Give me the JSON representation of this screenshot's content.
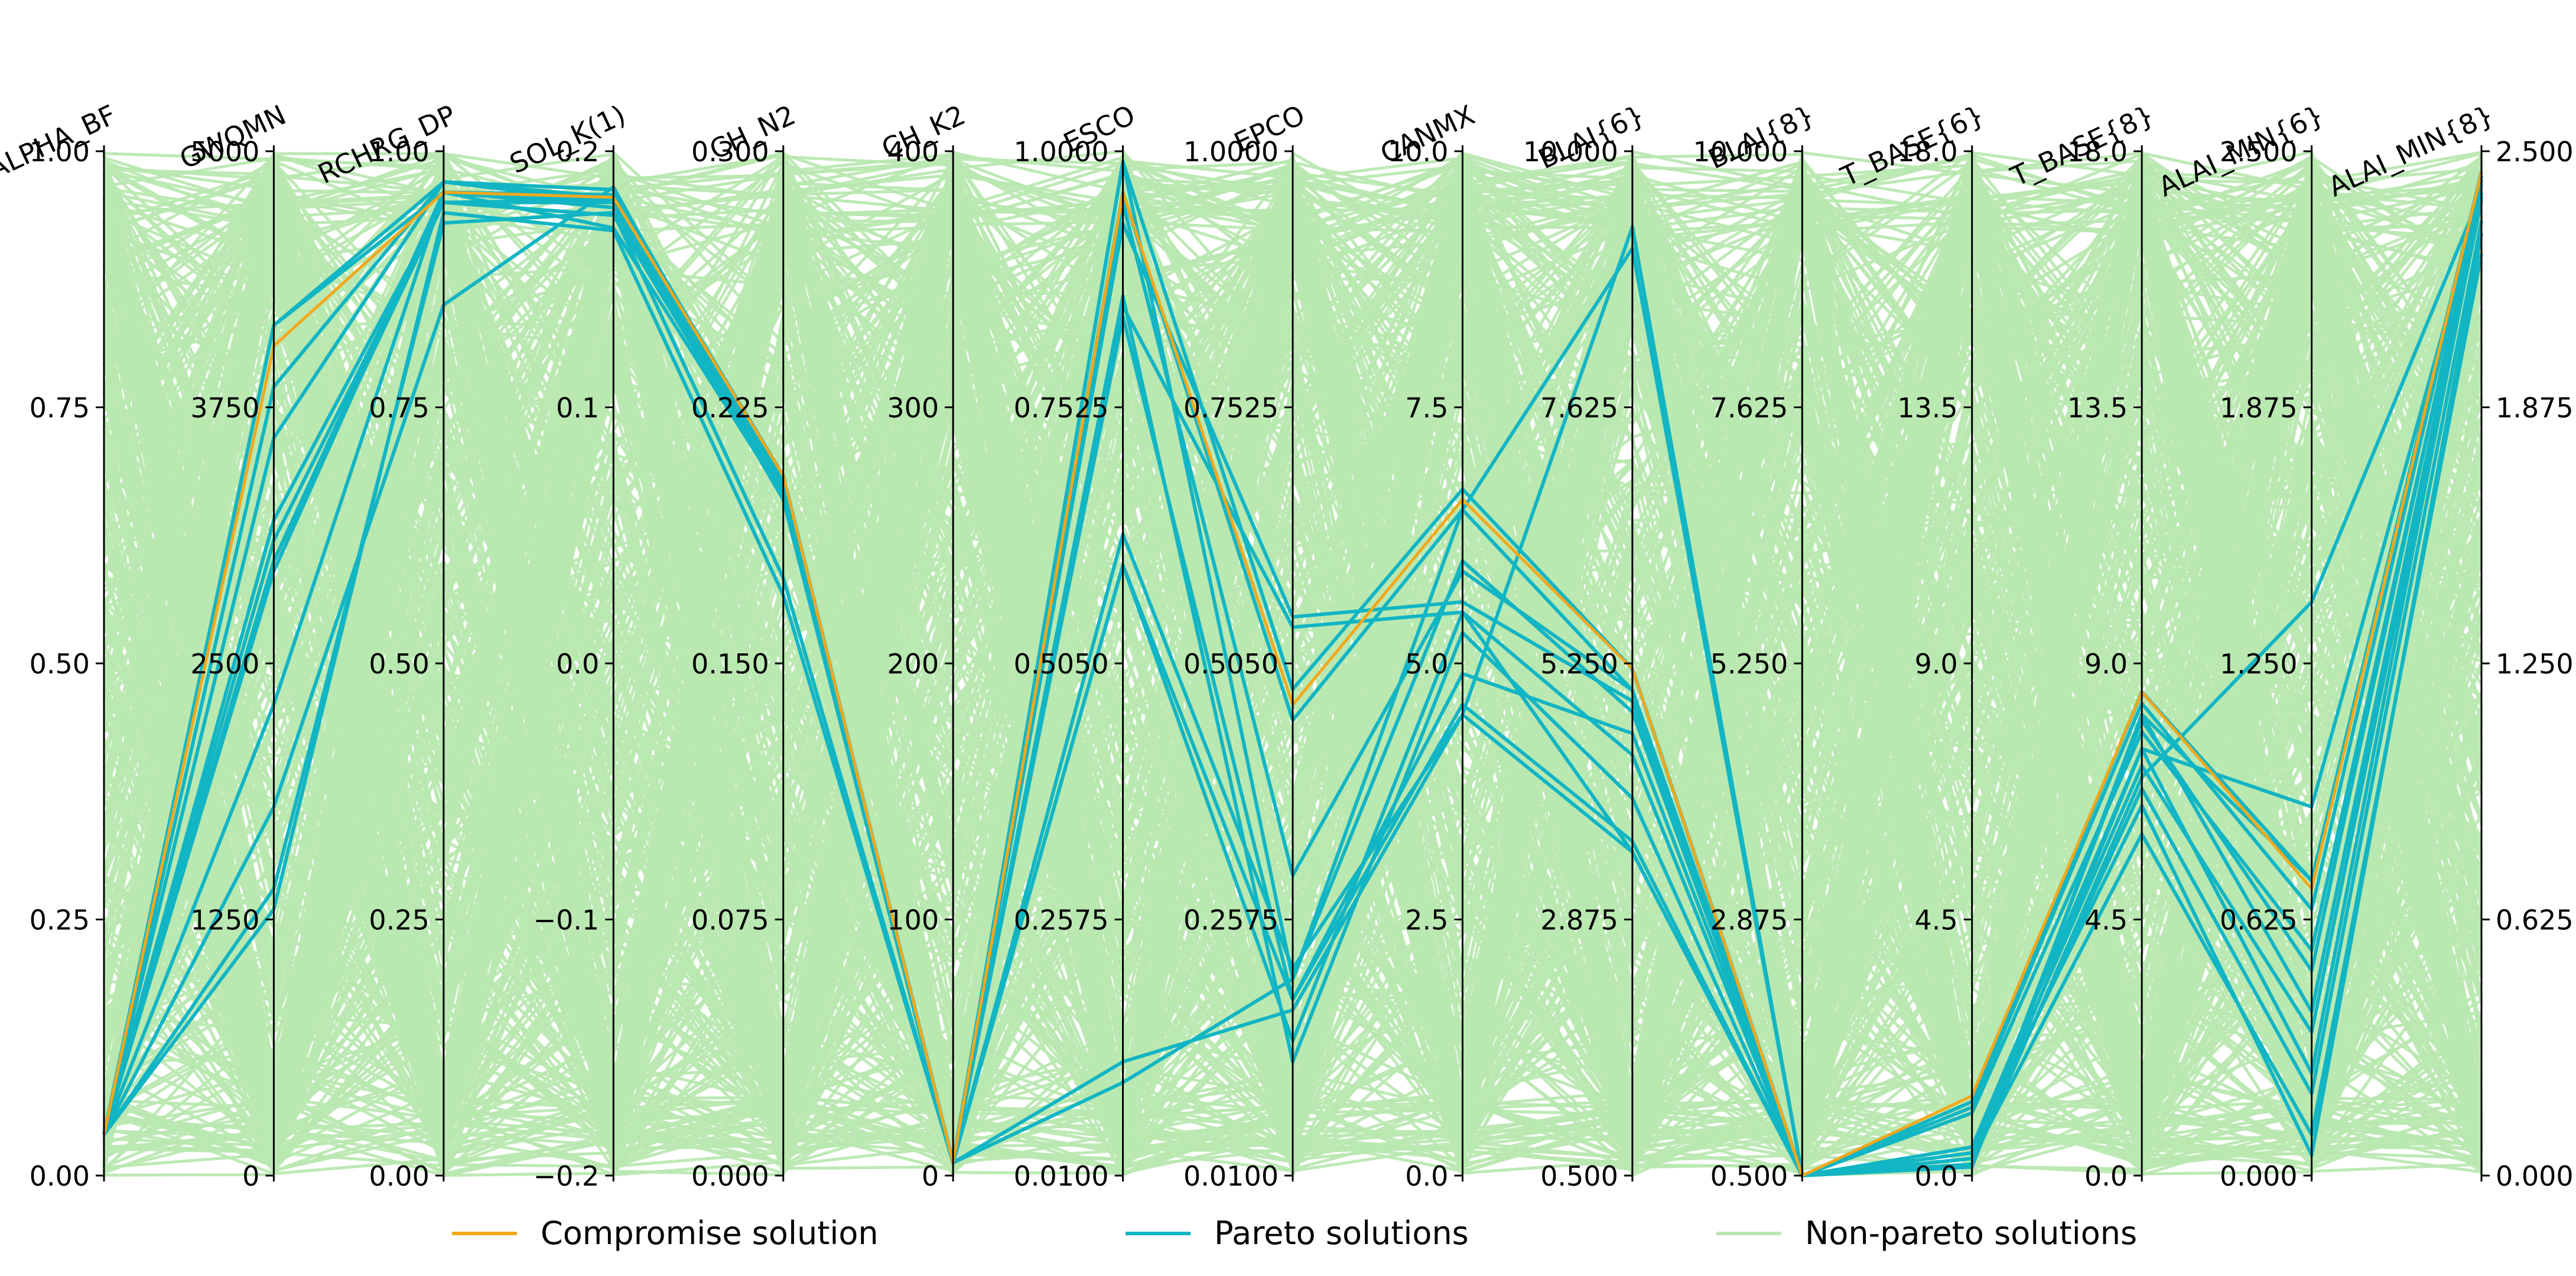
{
  "chart_data": {
    "type": "parallel-coordinates",
    "title": "",
    "axes": [
      {
        "name": "ALPHA_BF",
        "range": [
          0.0,
          1.0
        ],
        "ticks": [
          "0.00",
          "0.25",
          "0.50",
          "0.75",
          "1.00"
        ],
        "tick_side": "left"
      },
      {
        "name": "GWQMN",
        "range": [
          0,
          5000
        ],
        "ticks": [
          "0",
          "1250",
          "2500",
          "3750",
          "5000"
        ],
        "tick_side": "left"
      },
      {
        "name": "RCHRG_DP",
        "range": [
          0.0,
          1.0
        ],
        "ticks": [
          "0.00",
          "0.25",
          "0.50",
          "0.75",
          "1.00"
        ],
        "tick_side": "left"
      },
      {
        "name": "SOL_K(1)",
        "range": [
          -0.2,
          0.2
        ],
        "ticks": [
          "−0.2",
          "−0.1",
          "0.0",
          "0.1",
          "0.2"
        ],
        "tick_side": "left"
      },
      {
        "name": "CH_N2",
        "range": [
          0.0,
          0.3
        ],
        "ticks": [
          "0.000",
          "0.075",
          "0.150",
          "0.225",
          "0.300"
        ],
        "tick_side": "left"
      },
      {
        "name": "CH_K2",
        "range": [
          0,
          400
        ],
        "ticks": [
          "0",
          "100",
          "200",
          "300",
          "400"
        ],
        "tick_side": "left"
      },
      {
        "name": "ESCO",
        "range": [
          0.01,
          1.0
        ],
        "ticks": [
          "0.0100",
          "0.2575",
          "0.5050",
          "0.7525",
          "1.0000"
        ],
        "tick_side": "left"
      },
      {
        "name": "EPCO",
        "range": [
          0.01,
          1.0
        ],
        "ticks": [
          "0.0100",
          "0.2575",
          "0.5050",
          "0.7525",
          "1.0000"
        ],
        "tick_side": "left"
      },
      {
        "name": "CANMX",
        "range": [
          0.0,
          10.0
        ],
        "ticks": [
          "0.0",
          "2.5",
          "5.0",
          "7.5",
          "10.0"
        ],
        "tick_side": "left"
      },
      {
        "name": "BLAI{6}",
        "range": [
          0.5,
          10.0
        ],
        "ticks": [
          "0.500",
          "2.875",
          "5.250",
          "7.625",
          "10.000"
        ],
        "tick_side": "left"
      },
      {
        "name": "BLAI{8}",
        "range": [
          0.5,
          10.0
        ],
        "ticks": [
          "0.500",
          "2.875",
          "5.250",
          "7.625",
          "10.000"
        ],
        "tick_side": "left"
      },
      {
        "name": "T_BASE{6}",
        "range": [
          0.0,
          18.0
        ],
        "ticks": [
          "0.0",
          "4.5",
          "9.0",
          "13.5",
          "18.0"
        ],
        "tick_side": "left"
      },
      {
        "name": "T_BASE{8}",
        "range": [
          0.0,
          18.0
        ],
        "ticks": [
          "0.0",
          "4.5",
          "9.0",
          "13.5",
          "18.0"
        ],
        "tick_side": "left"
      },
      {
        "name": "ALAI_MIN{6}",
        "range": [
          0.0,
          2.5
        ],
        "ticks": [
          "0.000",
          "0.625",
          "1.250",
          "1.875",
          "2.500"
        ],
        "tick_side": "left"
      },
      {
        "name": "ALAI_MIN{8}",
        "range": [
          0.0,
          2.5
        ],
        "ticks": [
          "0.000",
          "0.625",
          "1.250",
          "1.875",
          "2.500"
        ],
        "tick_side": "right"
      }
    ],
    "series": [
      {
        "name": "Compromise solution",
        "color": "#f2a81d",
        "lines": [
          [
            0.04,
            4050,
            0.96,
            0.182,
            0.205,
            5,
            0.96,
            0.465,
            6.6,
            5.2,
            0.5,
            1.4,
            8.5,
            0.7,
            2.45
          ]
        ]
      },
      {
        "name": "Pareto solutions",
        "color": "#12b5c4",
        "lines": [
          [
            0.04,
            4150,
            0.96,
            0.183,
            0.205,
            5,
            0.99,
            0.48,
            6.7,
            5.2,
            0.5,
            1.3,
            8.5,
            0.72,
            2.44
          ],
          [
            0.04,
            3850,
            0.97,
            0.185,
            0.203,
            5,
            0.96,
            0.45,
            6.5,
            5.0,
            0.5,
            1.2,
            8.3,
            0.65,
            2.43
          ],
          [
            0.04,
            3000,
            0.95,
            0.18,
            0.2,
            5,
            0.93,
            0.55,
            5.6,
            4.9,
            0.5,
            0.15,
            8.1,
            0.4,
            2.4
          ],
          [
            0.04,
            2950,
            0.96,
            0.178,
            0.198,
            5,
            0.85,
            0.54,
            5.5,
            4.4,
            0.5,
            0.2,
            7.5,
            0.25,
            2.39
          ],
          [
            0.04,
            1400,
            0.93,
            0.176,
            0.175,
            5,
            0.63,
            0.21,
            4.5,
            3.5,
            0.5,
            0.5,
            6.5,
            0.05,
            2.3
          ],
          [
            0.04,
            1300,
            0.94,
            0.169,
            0.17,
            5,
            0.6,
            0.18,
            4.6,
            3.6,
            0.5,
            0.3,
            6.0,
            0.1,
            2.25
          ],
          [
            0.04,
            3200,
            0.95,
            0.181,
            0.2,
            5,
            0.95,
            0.3,
            5.9,
            5.0,
            0.5,
            1.1,
            7.8,
            0.55,
            2.4
          ],
          [
            0.04,
            3100,
            0.95,
            0.175,
            0.199,
            5,
            0.84,
            0.18,
            4.9,
            4.6,
            0.5,
            0.4,
            7.2,
            0.35,
            2.38
          ],
          [
            0.04,
            1800,
            0.85,
            0.186,
            0.199,
            5,
            0.6,
            0.14,
            5.5,
            3.5,
            0.5,
            0.3,
            6.8,
            0.2,
            2.33
          ],
          [
            0.04,
            4150,
            0.97,
            0.18,
            0.202,
            5,
            0.99,
            0.2,
            6.0,
            4.8,
            0.5,
            0.2,
            8.1,
            0.72,
            2.45
          ],
          [
            0.04,
            3000,
            0.96,
            0.18,
            0.2,
            5,
            0.12,
            0.17,
            4.5,
            9.3,
            0.5,
            0.2,
            7.0,
            1.4,
            2.4
          ],
          [
            0.04,
            3600,
            0.97,
            0.182,
            0.201,
            5,
            0.1,
            0.2,
            6.5,
            9.1,
            0.5,
            0.3,
            8.0,
            0.5,
            2.42
          ],
          [
            0.04,
            2300,
            0.96,
            0.17,
            0.199,
            5,
            0.86,
            0.12,
            5.3,
            4.0,
            0.5,
            0.5,
            7.5,
            0.9,
            2.4
          ]
        ]
      },
      {
        "name": "Non-pareto solutions",
        "color": "#b9e8b1",
        "lines": [],
        "note": "dense band of several hundred lines spanning the full range of every axis"
      }
    ],
    "legend": {
      "position": "bottom",
      "entries": [
        "Compromise solution",
        "Pareto solutions",
        "Non-pareto solutions"
      ]
    },
    "grid": false
  }
}
